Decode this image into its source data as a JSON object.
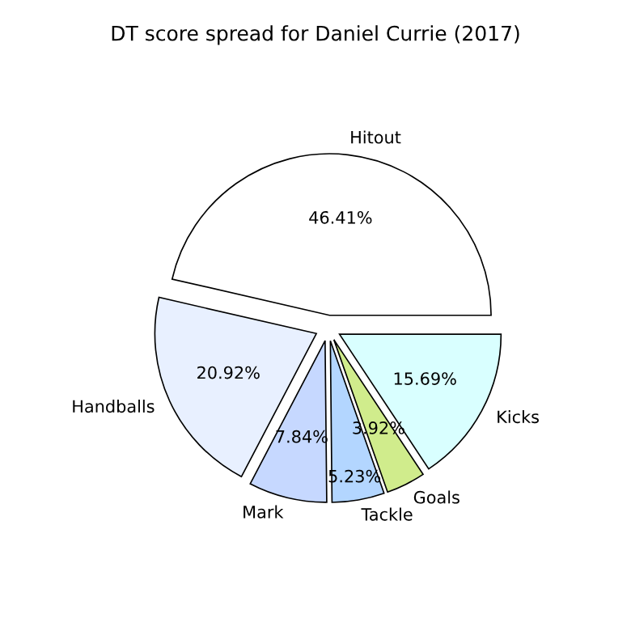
{
  "chart_data": {
    "type": "pie",
    "title": "DT score spread for Daniel Currie (2017)",
    "categories": [
      "Hitout",
      "Handballs",
      "Mark",
      "Tackle",
      "Goals",
      "Kicks"
    ],
    "values": [
      46.41,
      20.92,
      7.84,
      5.23,
      3.92,
      15.69
    ],
    "value_labels": [
      "46.41%",
      "20.92%",
      "7.84%",
      "5.23%",
      "3.92%",
      "15.69%"
    ],
    "colors": [
      "#ffffff",
      "#e8f0ff",
      "#c6d8ff",
      "#b3d6ff",
      "#d0ec8c",
      "#d9ffff"
    ]
  }
}
